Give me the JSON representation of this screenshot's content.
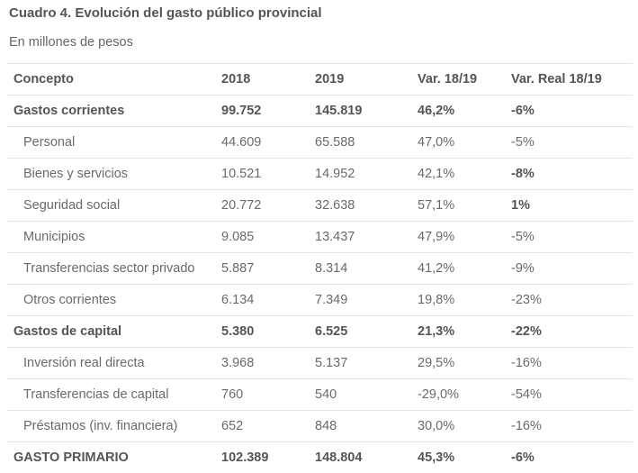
{
  "title": "Cuadro 4. Evolución del gasto público provincial",
  "subtitle": "En millones de pesos",
  "table": {
    "headers": [
      "Concepto",
      "2018",
      "2019",
      "Var. 18/19",
      "Var. Real 18/19"
    ],
    "rows": [
      {
        "concepto": "Gastos corrientes",
        "y2018": "99.752",
        "y2019": "145.819",
        "var": "46,2%",
        "var_real": "-6%"
      },
      {
        "concepto": "Personal",
        "y2018": "44.609",
        "y2019": "65.588",
        "var": "47,0%",
        "var_real": "-5%"
      },
      {
        "concepto": "Bienes y servicios",
        "y2018": "10.521",
        "y2019": "14.952",
        "var": "42,1%",
        "var_real": "-8%"
      },
      {
        "concepto": "Seguridad social",
        "y2018": "20.772",
        "y2019": "32.638",
        "var": "57,1%",
        "var_real": "1%"
      },
      {
        "concepto": "Municipios",
        "y2018": "9.085",
        "y2019": "13.437",
        "var": "47,9%",
        "var_real": "-5%"
      },
      {
        "concepto": "Transferencias sector privado",
        "y2018": "5.887",
        "y2019": "8.314",
        "var": "41,2%",
        "var_real": "-9%"
      },
      {
        "concepto": "Otros corrientes",
        "y2018": "6.134",
        "y2019": "7.349",
        "var": "19,8%",
        "var_real": "-23%"
      },
      {
        "concepto": "Gastos de capital",
        "y2018": "5.380",
        "y2019": "6.525",
        "var": "21,3%",
        "var_real": "-22%"
      },
      {
        "concepto": "Inversión real directa",
        "y2018": "3.968",
        "y2019": "5.137",
        "var": "29,5%",
        "var_real": "-16%"
      },
      {
        "concepto": "Transferencias de capital",
        "y2018": "760",
        "y2019": "540",
        "var": "-29,0%",
        "var_real": "-54%"
      },
      {
        "concepto": "Préstamos (inv. financiera)",
        "y2018": "652",
        "y2019": "848",
        "var": "30,0%",
        "var_real": "-16%"
      },
      {
        "concepto": "GASTO PRIMARIO",
        "y2018": "102.389",
        "y2019": "148.804",
        "var": "45,3%",
        "var_real": "-6%"
      }
    ]
  }
}
